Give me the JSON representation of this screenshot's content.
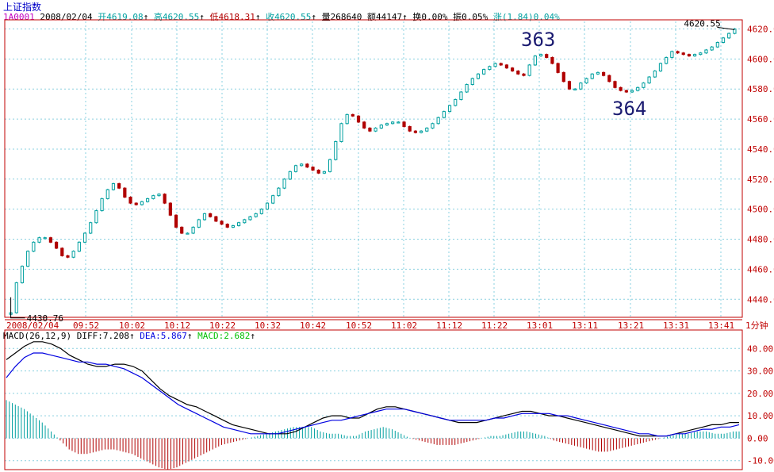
{
  "header": {
    "title": "上证指数",
    "code": "1A0001",
    "date": "2008/02/04",
    "open_label": "开",
    "open": "4619.08",
    "high_label": "高",
    "high": "4620.55",
    "low_label": "低",
    "low": "4618.31",
    "close_label": "收",
    "close": "4620.55",
    "volume_label": "量",
    "volume": "268640",
    "amount_label": "额",
    "amount": "44147",
    "turnover_label": "换",
    "turnover": "0.00%",
    "amplitude_label": "振",
    "amplitude": "0.05%",
    "change_label": "涨",
    "change": "(1.84)",
    "change_pct": "0.04%",
    "arrow": "↑"
  },
  "macd_header": {
    "name": "MACD(26,12,9)",
    "diff_label": "DIFF:",
    "diff": "7.208",
    "dea_label": "DEA:",
    "dea": "5.867",
    "macd_label": "MACD:",
    "macd": "2.682",
    "arrow": "↑"
  },
  "period_label": "1分钟",
  "annotations": {
    "a363": "363",
    "a364": "364",
    "last_price": "4620.55",
    "first_price": "4430.76"
  },
  "colors": {
    "up": "#00a0a0",
    "down": "#b00000",
    "grid": "#8ad0e0",
    "axis": "#c00000",
    "diff": "#000000",
    "dea": "#0000e0",
    "background": "#ffffff"
  },
  "chart_data": [
    {
      "type": "candlestick",
      "title": "上证指数 1分钟",
      "x_ticks": [
        "2008/02/04",
        "09:52",
        "10:02",
        "10:12",
        "10:22",
        "10:32",
        "10:42",
        "10:52",
        "11:02",
        "11:12",
        "11:22",
        "13:01",
        "13:11",
        "13:21",
        "13:31",
        "13:41"
      ],
      "y_ticks": [
        4440.0,
        4460.0,
        4480.0,
        4500.0,
        4520.0,
        4540.0,
        4560.0,
        4580.0,
        4600.0,
        4620.0
      ],
      "ylim": [
        4428,
        4625
      ],
      "grid": true,
      "series": [
        {
          "name": "close",
          "values": [
            4431,
            4451,
            4462,
            4472,
            4478,
            4481,
            4481,
            4478,
            4474,
            4469,
            4468,
            4472,
            4478,
            4484,
            4491,
            4499,
            4507,
            4513,
            4517,
            4514,
            4508,
            4504,
            4503,
            4505,
            4507,
            4509,
            4510,
            4504,
            4496,
            4488,
            4484,
            4484,
            4488,
            4493,
            4497,
            4495,
            4492,
            4490,
            4488,
            4489,
            4491,
            4493,
            4495,
            4497,
            4500,
            4504,
            4509,
            4514,
            4520,
            4525,
            4529,
            4530,
            4528,
            4526,
            4524,
            4525,
            4533,
            4545,
            4557,
            4563,
            4562,
            4558,
            4554,
            4552,
            4554,
            4556,
            4557,
            4558,
            4558,
            4555,
            4552,
            4551,
            4552,
            4554,
            4557,
            4561,
            4565,
            4569,
            4573,
            4578,
            4583,
            4587,
            4590,
            4593,
            4595,
            4597,
            4596,
            4594,
            4592,
            4590,
            4589,
            4596,
            4602,
            4603,
            4601,
            4597,
            4591,
            4585,
            4580,
            4580,
            4584,
            4587,
            4590,
            4591,
            4589,
            4585,
            4581,
            4579,
            4578,
            4579,
            4581,
            4584,
            4588,
            4592,
            4597,
            4601,
            4605,
            4604,
            4603,
            4602,
            4603,
            4604,
            4606,
            4608,
            4611,
            4614,
            4617,
            4620
          ]
        }
      ]
    },
    {
      "type": "line",
      "title": "MACD(26,12,9)",
      "y_ticks": [
        -10.0,
        0.0,
        10.0,
        20.0,
        30.0,
        40.0
      ],
      "ylim": [
        -14,
        44
      ],
      "series": [
        {
          "name": "DIFF",
          "values": [
            35,
            38,
            41,
            43,
            43,
            42,
            40,
            37,
            35,
            33,
            32,
            32,
            33,
            33,
            32,
            30,
            26,
            22,
            19,
            17,
            15,
            14,
            12,
            10,
            8,
            6,
            5,
            4,
            3,
            2,
            2,
            2,
            3,
            5,
            7,
            9,
            10,
            10,
            9,
            9,
            11,
            13,
            14,
            14,
            13,
            12,
            11,
            10,
            9,
            8,
            7,
            7,
            7,
            8,
            9,
            10,
            11,
            12,
            12,
            11,
            10,
            10,
            9,
            8,
            7,
            6,
            5,
            4,
            3,
            2,
            1,
            1,
            1,
            1,
            2,
            3,
            4,
            5,
            6,
            6,
            7,
            7
          ]
        },
        {
          "name": "DEA",
          "values": [
            27,
            32,
            36,
            38,
            38,
            37,
            36,
            35,
            34,
            34,
            33,
            33,
            32,
            31,
            29,
            27,
            24,
            21,
            18,
            15,
            13,
            11,
            9,
            7,
            5,
            4,
            3,
            2,
            2,
            2,
            2,
            3,
            4,
            5,
            6,
            7,
            8,
            8,
            9,
            10,
            11,
            12,
            13,
            13,
            13,
            12,
            11,
            10,
            9,
            8,
            8,
            8,
            8,
            8,
            9,
            9,
            10,
            11,
            11,
            11,
            11,
            10,
            10,
            9,
            8,
            7,
            6,
            5,
            4,
            3,
            2,
            2,
            1,
            1,
            2,
            2,
            3,
            4,
            4,
            5,
            5,
            6
          ]
        },
        {
          "name": "MACD",
          "values": [
            17,
            15,
            13,
            10,
            7,
            3,
            -1,
            -5,
            -7,
            -7,
            -6,
            -5,
            -5,
            -6,
            -7,
            -9,
            -11,
            -13,
            -14,
            -13,
            -11,
            -9,
            -7,
            -5,
            -3,
            -2,
            -1,
            0,
            1,
            2,
            3,
            4,
            5,
            5,
            5,
            3,
            2,
            2,
            1,
            1,
            3,
            4,
            5,
            4,
            2,
            0,
            -1,
            -2,
            -3,
            -3,
            -3,
            -2,
            -1,
            0,
            1,
            1,
            2,
            3,
            3,
            2,
            1,
            -1,
            -2,
            -3,
            -4,
            -5,
            -6,
            -6,
            -5,
            -4,
            -3,
            -2,
            -1,
            0,
            1,
            2,
            2,
            3,
            3,
            2,
            2,
            3
          ]
        }
      ]
    }
  ]
}
